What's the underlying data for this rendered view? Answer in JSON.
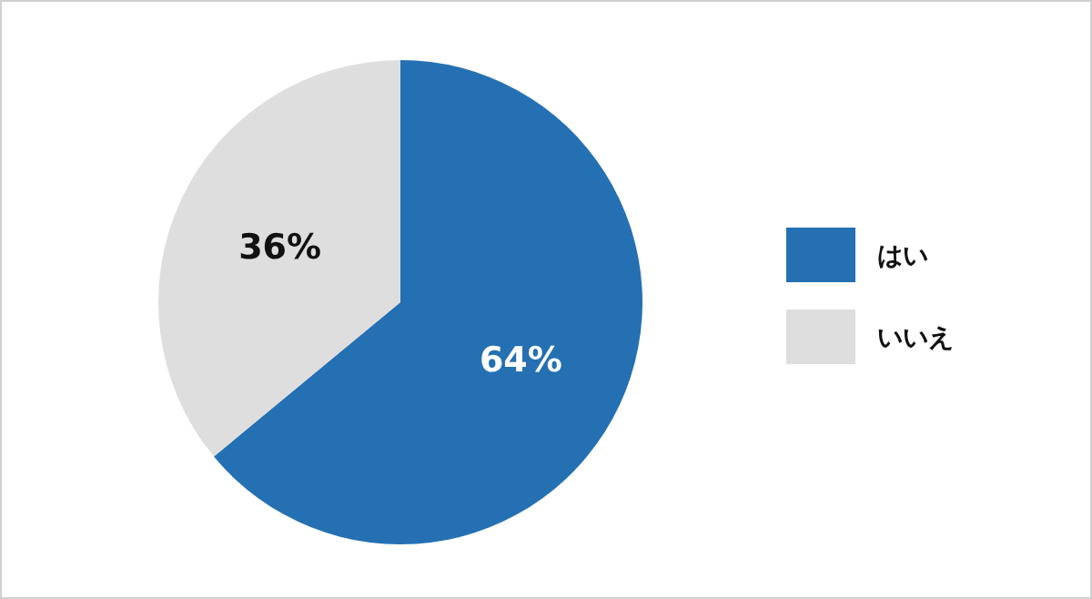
{
  "chart_data": {
    "type": "pie",
    "categories": [
      "はい",
      "いいえ"
    ],
    "values": [
      64,
      36
    ],
    "colors": [
      "#2470b3",
      "#dedede"
    ],
    "value_labels": [
      "64%",
      "36%"
    ],
    "legend": "right"
  }
}
